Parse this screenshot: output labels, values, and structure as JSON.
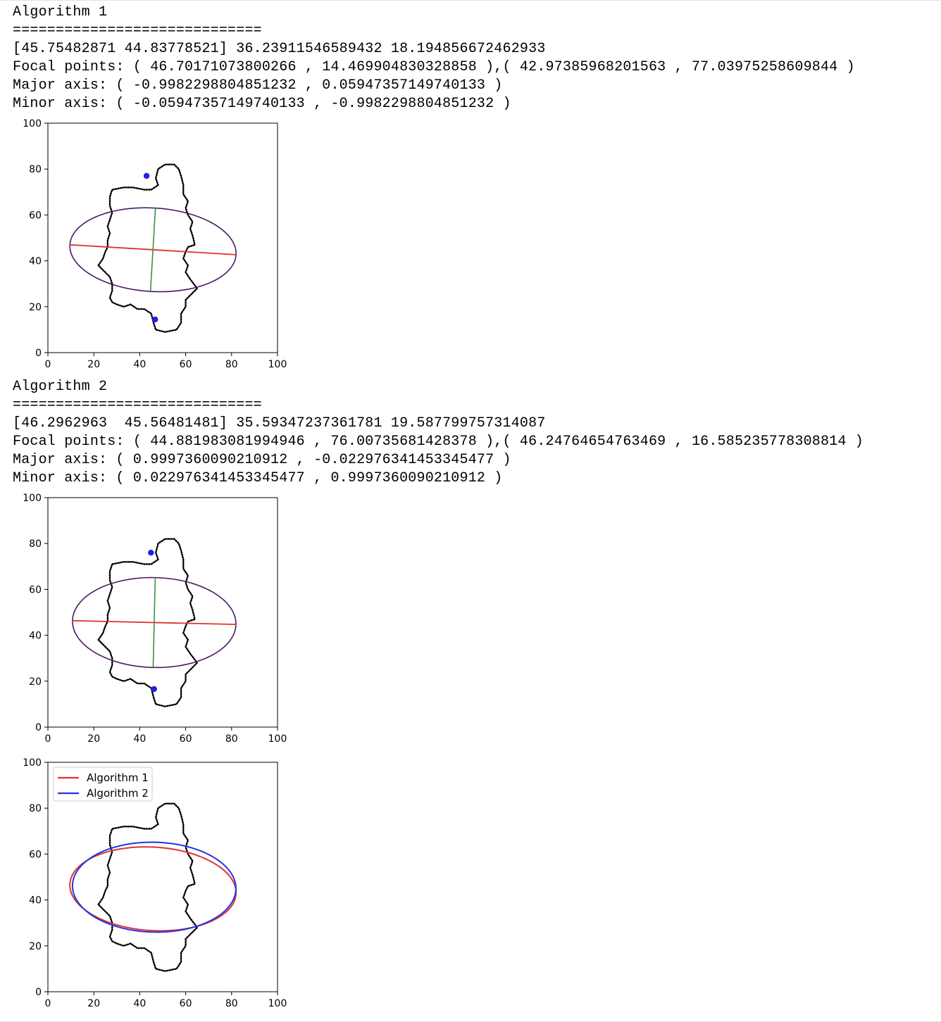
{
  "output": {
    "block1": {
      "title": "Algorithm 1",
      "separator": "=============================",
      "summary": "[45.75482871 44.83778521] 36.23911546589432 18.194856672462933",
      "focal": "Focal points: ( 46.70171073800266 , 14.469904830328858 ),( 42.97385968201563 , 77.03975258609844 )",
      "major": "Major axis: ( -0.9982298804851232 , 0.05947357149740133 )",
      "minor": "Minor axis: ( -0.05947357149740133 , -0.9982298804851232 )"
    },
    "block2": {
      "title": "Algorithm 2",
      "separator": "=============================",
      "summary": "[46.2962963  45.56481481] 35.59347237361781 19.587799757314087",
      "focal": "Focal points: ( 44.881983081994946 , 76.00735681428378 ),( 46.24764654763469 , 16.585235778308814 )",
      "major": "Major axis: ( 0.9997360090210912 , -0.022976341453345477 )",
      "minor": "Minor axis: ( 0.022976341453345477 , 0.9997360090210912 )"
    }
  },
  "colors": {
    "contour": "#000000",
    "ellipse_fit": "#4b1a63",
    "major_axis": "#e0332c",
    "minor_axis": "#3f8f3f",
    "focal_point": "#1f1fe6",
    "legend_algorithm1": "#e0332c",
    "legend_algorithm2": "#1f35e6"
  },
  "chart_data": [
    {
      "type": "scatter",
      "title": "",
      "xlabel": "",
      "ylabel": "",
      "xlim": [
        0,
        100
      ],
      "ylim": [
        100,
        0
      ],
      "xticks": [
        "0",
        "20",
        "40",
        "60",
        "80",
        "100"
      ],
      "yticks": [
        "0",
        "20",
        "40",
        "60",
        "80",
        "100"
      ],
      "grid": false,
      "ellipse": {
        "center": [
          45.75482871,
          44.83778521
        ],
        "semi_major": 36.23911546589432,
        "semi_minor": 18.194856672462933,
        "major_axis_dir": [
          -0.9982298804851232,
          0.05947357149740133
        ]
      },
      "focal_points": [
        [
          46.70171073800266,
          14.469904830328858
        ],
        [
          42.97385968201563,
          77.03975258609844
        ]
      ]
    },
    {
      "type": "scatter",
      "title": "",
      "xlabel": "",
      "ylabel": "",
      "xlim": [
        0,
        100
      ],
      "ylim": [
        100,
        0
      ],
      "xticks": [
        "0",
        "20",
        "40",
        "60",
        "80",
        "100"
      ],
      "yticks": [
        "0",
        "20",
        "40",
        "60",
        "80",
        "100"
      ],
      "grid": false,
      "ellipse": {
        "center": [
          46.2962963,
          45.56481481
        ],
        "semi_major": 35.59347237361781,
        "semi_minor": 19.587799757314087,
        "major_axis_dir": [
          0.9997360090210912,
          -0.022976341453345477
        ]
      },
      "focal_points": [
        [
          44.881983081994946,
          76.00735681428378
        ],
        [
          46.24764654763469,
          16.585235778308814
        ]
      ]
    },
    {
      "type": "line",
      "title": "",
      "xlabel": "",
      "ylabel": "",
      "xlim": [
        0,
        100
      ],
      "ylim": [
        100,
        0
      ],
      "xticks": [
        "0",
        "20",
        "40",
        "60",
        "80",
        "100"
      ],
      "yticks": [
        "0",
        "20",
        "40",
        "60",
        "80",
        "100"
      ],
      "grid": false,
      "legend": {
        "placement": "top-left",
        "entries": [
          "Algorithm 1",
          "Algorithm 2"
        ]
      },
      "series": [
        {
          "name": "Algorithm 1",
          "center": [
            45.75482871,
            44.83778521
          ],
          "semi_major": 36.23911546589432,
          "semi_minor": 18.194856672462933,
          "major_axis_dir": [
            -0.9982298804851232,
            0.05947357149740133
          ]
        },
        {
          "name": "Algorithm 2",
          "center": [
            46.2962963,
            45.56481481
          ],
          "semi_major": 35.59347237361781,
          "semi_minor": 19.587799757314087,
          "major_axis_dir": [
            0.9997360090210912,
            -0.022976341453345477
          ]
        }
      ]
    }
  ]
}
